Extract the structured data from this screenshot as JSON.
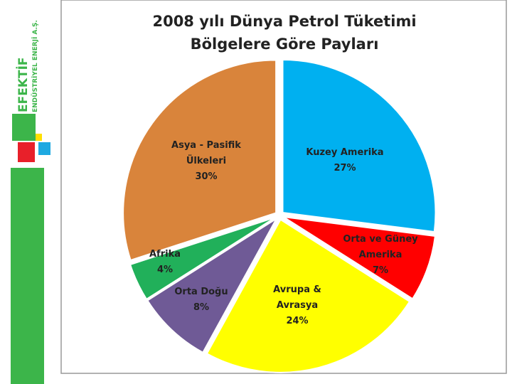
{
  "logo": {
    "name": "EFEKTİF",
    "subtitle": "ENDÜSTRİYEL ENERJİ A.Ş."
  },
  "chart_data": {
    "type": "pie",
    "title": "2008 yılı Dünya Petrol Tüketimi Bölgelere Göre Payları",
    "categories": [
      "Kuzey Amerika",
      "Orta ve Güney Amerika",
      "Avrupa & Avrasya",
      "Orta Doğu",
      "Afrika",
      "Asya - Pasifik Ülkeleri"
    ],
    "values": [
      27,
      7,
      24,
      8,
      4,
      30
    ],
    "value_labels": [
      "27%",
      "7%",
      "24%",
      "8%",
      "4%",
      "30%"
    ],
    "colors": [
      "#00b0f0",
      "#ff0000",
      "#ffff00",
      "#6f5a96",
      "#21b05a",
      "#d9843b"
    ]
  }
}
